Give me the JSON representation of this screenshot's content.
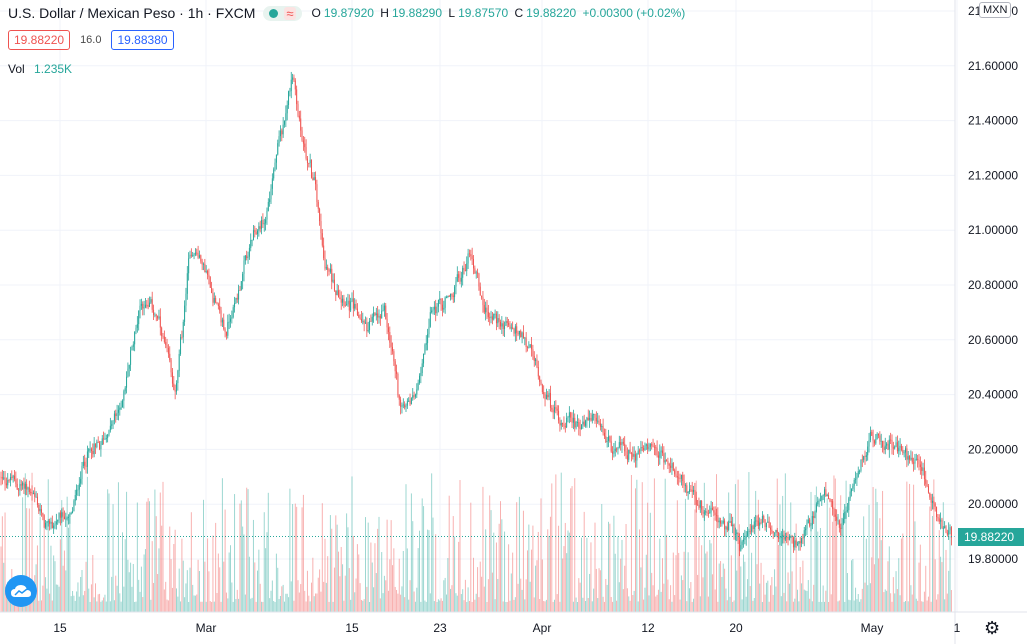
{
  "header": {
    "symbol_title": "U.S. Dollar / Mexican Peso · 1h · FXCM",
    "ohlc": {
      "o_label": "O",
      "o_value": "19.87920",
      "h_label": "H",
      "h_value": "19.88290",
      "l_label": "L",
      "l_value": "19.87570",
      "c_label": "C",
      "c_value": "19.88220",
      "change": "+0.00300 (+0.02%)"
    },
    "bid": "19.88220",
    "spread": "16.0",
    "ask": "19.88380",
    "volume_label": "Vol",
    "volume_value": "1.235K"
  },
  "currency_button": "MXN",
  "last_price_tag": "19.88220",
  "colors": {
    "up": "#26a69a",
    "down": "#ef5350",
    "grid": "#f0f3fa",
    "axis_text": "#131722",
    "ask": "#2962ff"
  },
  "icons": {
    "logo": "tradingview-cloud-icon",
    "settings": "gear-icon"
  },
  "chart_data": {
    "type": "candlestick",
    "ylim": [
      19.62,
      21.72
    ],
    "y_ticks": [
      "21.80000",
      "21.60000",
      "21.40000",
      "21.20000",
      "21.00000",
      "20.80000",
      "20.60000",
      "20.40000",
      "20.20000",
      "20.00000",
      "19.80000"
    ],
    "x_tick_labels": [
      "15",
      "Mar",
      "15",
      "23",
      "Apr",
      "12",
      "20",
      "May",
      "1"
    ],
    "last_price": 19.8822,
    "approx_path": [
      [
        0,
        20.1
      ],
      [
        30,
        20.05
      ],
      [
        45,
        19.92
      ],
      [
        70,
        19.95
      ],
      [
        85,
        20.18
      ],
      [
        100,
        20.22
      ],
      [
        120,
        20.35
      ],
      [
        140,
        20.75
      ],
      [
        155,
        20.7
      ],
      [
        175,
        20.4
      ],
      [
        190,
        20.95
      ],
      [
        205,
        20.85
      ],
      [
        225,
        20.62
      ],
      [
        250,
        20.95
      ],
      [
        265,
        21.05
      ],
      [
        280,
        21.35
      ],
      [
        292,
        21.58
      ],
      [
        300,
        21.35
      ],
      [
        315,
        21.15
      ],
      [
        325,
        20.85
      ],
      [
        345,
        20.75
      ],
      [
        365,
        20.65
      ],
      [
        385,
        20.7
      ],
      [
        400,
        20.35
      ],
      [
        415,
        20.4
      ],
      [
        430,
        20.7
      ],
      [
        450,
        20.75
      ],
      [
        470,
        20.92
      ],
      [
        485,
        20.7
      ],
      [
        505,
        20.65
      ],
      [
        525,
        20.6
      ],
      [
        540,
        20.45
      ],
      [
        555,
        20.32
      ],
      [
        575,
        20.3
      ],
      [
        595,
        20.3
      ],
      [
        610,
        20.22
      ],
      [
        630,
        20.18
      ],
      [
        650,
        20.2
      ],
      [
        675,
        20.12
      ],
      [
        700,
        19.98
      ],
      [
        720,
        19.95
      ],
      [
        740,
        19.85
      ],
      [
        760,
        19.95
      ],
      [
        780,
        19.88
      ],
      [
        800,
        19.85
      ],
      [
        825,
        20.05
      ],
      [
        840,
        19.92
      ],
      [
        855,
        20.1
      ],
      [
        870,
        20.25
      ],
      [
        885,
        20.22
      ],
      [
        900,
        20.2
      ],
      [
        920,
        20.15
      ],
      [
        935,
        19.95
      ],
      [
        945,
        19.9
      ],
      [
        950,
        19.88
      ]
    ]
  }
}
